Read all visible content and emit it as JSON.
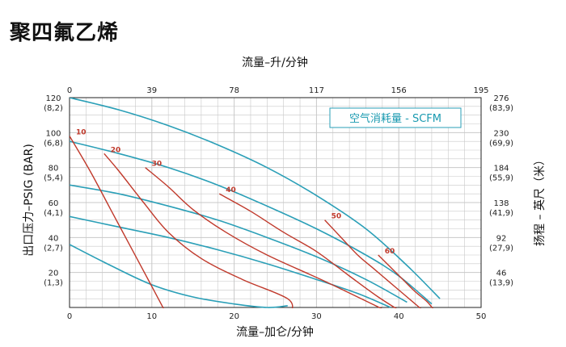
{
  "page": {
    "title": "聚四氟乙烯"
  },
  "chart_data": {
    "type": "line",
    "title": "",
    "xlabel_bottom": "流量–加仑/分钟",
    "xlabel_top": "流量–升/分钟",
    "ylabel_left": "出口压力–PSIG (BAR)",
    "ylabel_right": "扬程 – 英尺（米）",
    "xlim": [
      0,
      50
    ],
    "ylim": [
      0,
      120
    ],
    "grid": true,
    "x_ticks_bottom": [
      "0",
      "10",
      "20",
      "30",
      "40",
      "50"
    ],
    "x_ticks_top": [
      "0",
      "39",
      "78",
      "117",
      "156",
      "195"
    ],
    "y_ticks_left": [
      {
        "value": 120,
        "psi": "120",
        "bar": "(8,2)"
      },
      {
        "value": 100,
        "psi": "100",
        "bar": "(6,8)"
      },
      {
        "value": 80,
        "psi": "80",
        "bar": "(5,4)"
      },
      {
        "value": 60,
        "psi": "60",
        "bar": "(4,1)"
      },
      {
        "value": 40,
        "psi": "40",
        "bar": "(2,7)"
      },
      {
        "value": 20,
        "psi": "20",
        "bar": "(1,3)"
      }
    ],
    "y_ticks_right": [
      {
        "value": 120,
        "ft": "276",
        "m": "(83,9)"
      },
      {
        "value": 100,
        "ft": "230",
        "m": "(69,9)"
      },
      {
        "value": 80,
        "ft": "184",
        "m": "(55,9)"
      },
      {
        "value": 60,
        "ft": "138",
        "m": "(41,9)"
      },
      {
        "value": 40,
        "ft": "92",
        "m": "(27,9)"
      },
      {
        "value": 20,
        "ft": "46",
        "m": "(13,9)"
      }
    ],
    "legend": "空气消耗量 - SCFM",
    "legend_placement": "top-right",
    "colors": {
      "pressure_curves": "#2a9fb7",
      "air_curves": "#c0392b",
      "grid": "#c8c8c8"
    },
    "pressure_series": [
      {
        "x": [
          0,
          6,
          12,
          18,
          24,
          30,
          36,
          41,
          45
        ],
        "y": [
          120,
          113,
          104,
          93,
          80,
          64,
          45,
          24,
          5
        ]
      },
      {
        "x": [
          0,
          6,
          12,
          18,
          24,
          30,
          36,
          40,
          44
        ],
        "y": [
          95,
          88,
          80,
          70,
          58,
          45,
          30,
          18,
          2
        ]
      },
      {
        "x": [
          0,
          6,
          12,
          18,
          24,
          30,
          36,
          41
        ],
        "y": [
          70,
          65,
          58,
          50,
          40,
          29,
          16,
          3
        ]
      },
      {
        "x": [
          0,
          6,
          12,
          18,
          24,
          30,
          35,
          39
        ],
        "y": [
          52,
          46,
          40,
          33,
          25,
          16,
          8,
          0
        ]
      },
      {
        "x": [
          0,
          5,
          10,
          15,
          20,
          24,
          26.5
        ],
        "y": [
          36,
          24,
          13,
          6,
          2,
          0,
          1
        ]
      }
    ],
    "air_series": [
      {
        "label": "10",
        "x": [
          0,
          2.5,
          5,
          7.5,
          10,
          11.8
        ],
        "y": [
          98,
          78,
          56,
          34,
          12,
          -4
        ]
      },
      {
        "label": "20",
        "x": [
          4.2,
          6,
          9,
          12,
          16,
          21,
          26.5,
          27
        ],
        "y": [
          88,
          78,
          60,
          43,
          28,
          16,
          5,
          -3
        ]
      },
      {
        "label": "30",
        "x": [
          9.2,
          12,
          15,
          19,
          24,
          31,
          38.5
        ],
        "y": [
          80,
          69,
          56,
          43,
          30,
          15,
          -2
        ]
      },
      {
        "label": "40",
        "x": [
          18.2,
          22,
          26,
          30,
          34,
          37.5,
          40.5
        ],
        "y": [
          65,
          55,
          43,
          32,
          18,
          6,
          -3
        ]
      },
      {
        "label": "50",
        "x": [
          31,
          33,
          35,
          37,
          39,
          41,
          42.5,
          43.5
        ],
        "y": [
          50,
          40,
          30,
          22,
          14,
          6,
          0,
          -4
        ]
      },
      {
        "label": "60",
        "x": [
          37.5,
          39,
          40.5,
          42,
          43.5,
          44.5
        ],
        "y": [
          30,
          23,
          16,
          9,
          3,
          -3
        ]
      }
    ]
  }
}
